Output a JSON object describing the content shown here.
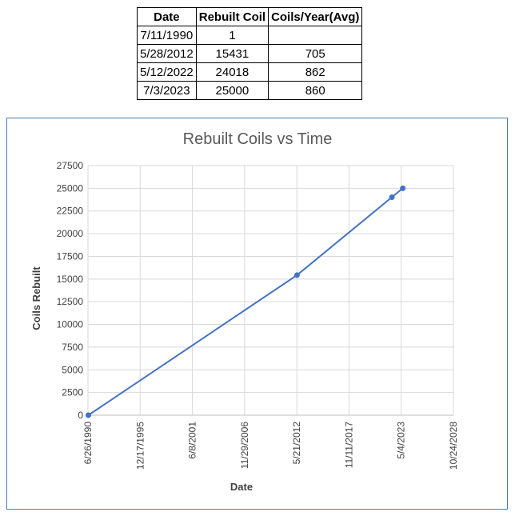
{
  "table": {
    "headers": [
      "Date",
      "Rebuilt Coil",
      "Coils/Year(Avg)"
    ],
    "rows": [
      [
        "7/11/1990",
        "1",
        ""
      ],
      [
        "5/28/2012",
        "15431",
        "705"
      ],
      [
        "5/12/2022",
        "24018",
        "862"
      ],
      [
        "7/3/2023",
        "25000",
        "860"
      ]
    ]
  },
  "chart_data": {
    "type": "line",
    "title": "Rebuilt Coils vs Time",
    "xlabel": "Date",
    "ylabel": "Coils Rebuilt",
    "x": [
      "1990-07-11",
      "2012-05-28",
      "2022-05-12",
      "2023-07-03"
    ],
    "y": [
      1,
      15431,
      24018,
      25000
    ],
    "xlim": [
      "1990-06-26",
      "2028-10-24"
    ],
    "ylim": [
      0,
      27500
    ],
    "x_tick_labels": [
      "6/26/1990",
      "12/17/1995",
      "6/8/2001",
      "11/29/2006",
      "5/21/2012",
      "11/11/2017",
      "5/4/2023",
      "10/24/2028"
    ],
    "y_ticks": [
      0,
      2500,
      5000,
      7500,
      10000,
      12500,
      15000,
      17500,
      20000,
      22500,
      25000,
      27500
    ],
    "grid": true,
    "line_color": "#4472c4",
    "markers": true
  }
}
